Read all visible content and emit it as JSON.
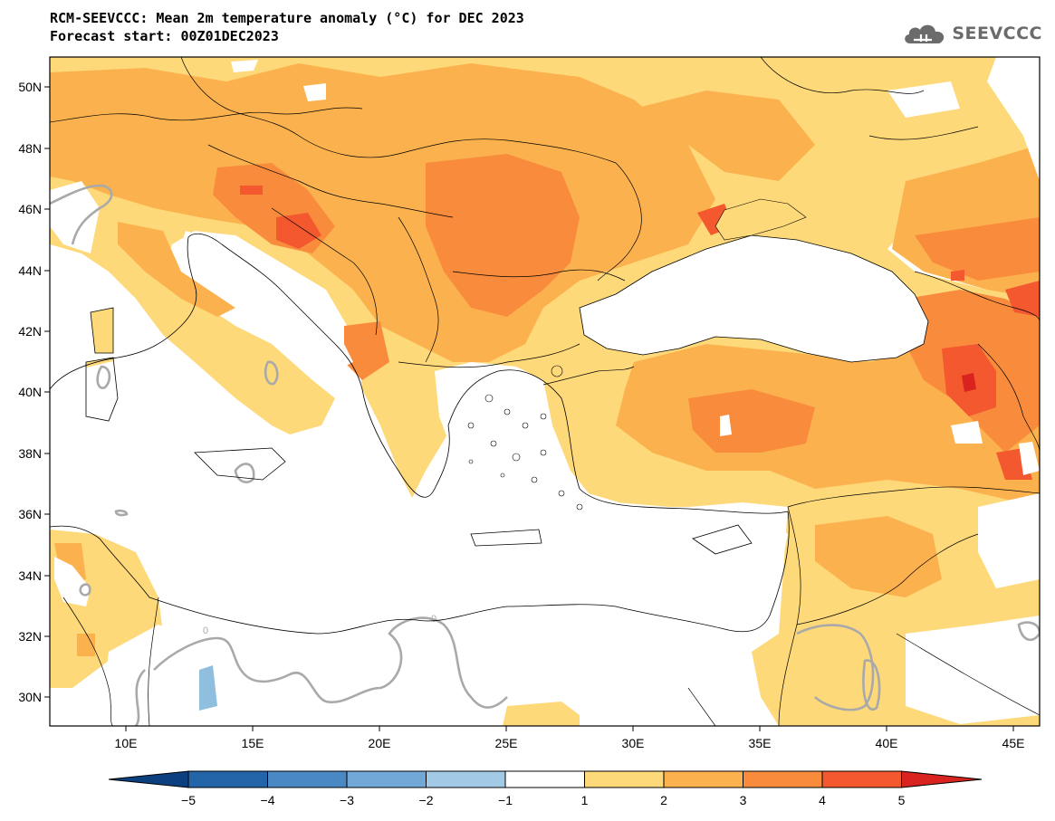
{
  "header": {
    "title": "RCM-SEEVCCC: Mean 2m temperature anomaly (°C) for DEC 2023",
    "subtitle": "Forecast start: 00Z01DEC2023"
  },
  "logo": {
    "text": "SEEVCCC",
    "icon": "cloud-icon"
  },
  "map": {
    "lon_ticks": [
      "10E",
      "15E",
      "20E",
      "25E",
      "30E",
      "35E",
      "40E",
      "45E"
    ],
    "lat_ticks": [
      "50N",
      "48N",
      "46N",
      "44N",
      "42N",
      "40N",
      "38N",
      "36N",
      "34N",
      "32N",
      "30N"
    ],
    "contour_label": "0"
  },
  "colorbar": {
    "labels": [
      "−5",
      "−4",
      "−3",
      "−2",
      "−1",
      "1",
      "2",
      "3",
      "4",
      "5"
    ],
    "colors": [
      "#0b3f7e",
      "#2464a8",
      "#4a88c4",
      "#72a8d8",
      "#a2cae6",
      "#ffffff",
      "#fed97a",
      "#fbb24e",
      "#f98c3c",
      "#f3582e",
      "#d9231e"
    ]
  }
}
